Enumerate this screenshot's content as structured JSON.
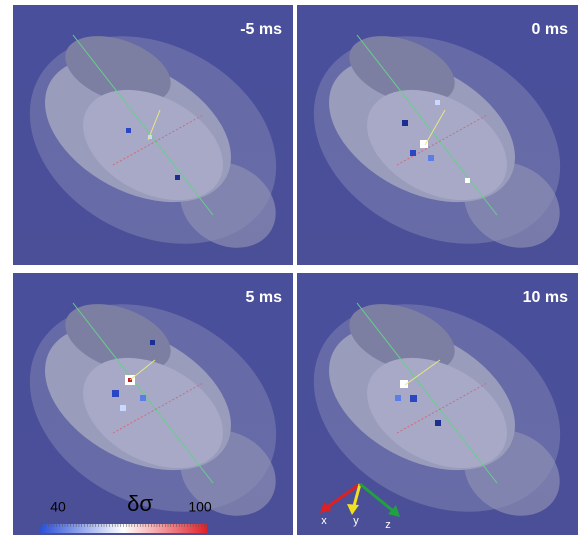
{
  "panels": [
    {
      "label": "-5 ms"
    },
    {
      "label": "0 ms"
    },
    {
      "label": "5 ms"
    },
    {
      "label": "10 ms"
    }
  ],
  "colorbar": {
    "symbol": "δσ",
    "ticks": [
      40,
      100
    ],
    "colors": [
      "#2b4fd8",
      "#ffffff",
      "#e0202a"
    ]
  },
  "axes": {
    "x": "x",
    "y": "y",
    "z": "z"
  }
}
